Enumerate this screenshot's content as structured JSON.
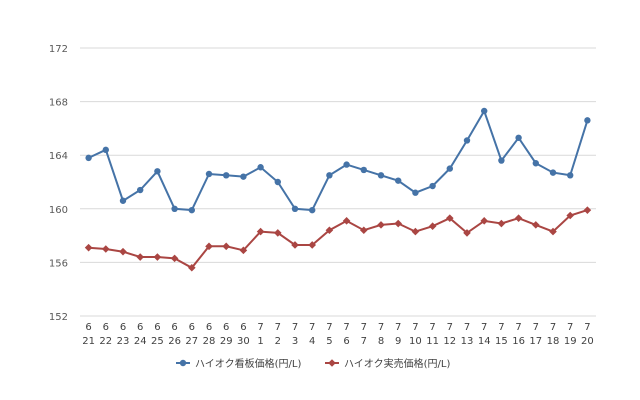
{
  "chart_data": {
    "type": "line",
    "title": "",
    "xlabel": "",
    "ylabel": "",
    "ylim": [
      152,
      172
    ],
    "yticks": [
      "152",
      "156",
      "160",
      "164",
      "168",
      "172"
    ],
    "grid": "horizontal",
    "legend": "bottom",
    "categories": [
      [
        "6",
        "21"
      ],
      [
        "6",
        "22"
      ],
      [
        "6",
        "23"
      ],
      [
        "6",
        "24"
      ],
      [
        "6",
        "25"
      ],
      [
        "6",
        "26"
      ],
      [
        "6",
        "27"
      ],
      [
        "6",
        "28"
      ],
      [
        "6",
        "29"
      ],
      [
        "6",
        "30"
      ],
      [
        "7",
        "1"
      ],
      [
        "7",
        "2"
      ],
      [
        "7",
        "3"
      ],
      [
        "7",
        "4"
      ],
      [
        "7",
        "5"
      ],
      [
        "7",
        "6"
      ],
      [
        "7",
        "7"
      ],
      [
        "7",
        "8"
      ],
      [
        "7",
        "9"
      ],
      [
        "7",
        "10"
      ],
      [
        "7",
        "11"
      ],
      [
        "7",
        "12"
      ],
      [
        "7",
        "13"
      ],
      [
        "7",
        "14"
      ],
      [
        "7",
        "15"
      ],
      [
        "7",
        "16"
      ],
      [
        "7",
        "17"
      ],
      [
        "7",
        "18"
      ],
      [
        "7",
        "19"
      ],
      [
        "7",
        "20"
      ]
    ],
    "series": [
      {
        "name": "ハイオク看板価格(円/L)",
        "color": "#4573a7",
        "marker": "circle",
        "values": [
          163.8,
          164.4,
          160.6,
          161.4,
          162.8,
          160.0,
          159.9,
          162.6,
          162.5,
          162.4,
          163.1,
          162.0,
          160.0,
          159.9,
          162.5,
          163.3,
          162.9,
          162.5,
          162.1,
          161.2,
          161.7,
          163.0,
          165.1,
          167.3,
          163.6,
          165.3,
          163.4,
          162.7,
          162.5,
          166.6
        ]
      },
      {
        "name": "ハイオク実売価格(円/L)",
        "color": "#aa4643",
        "marker": "diamond",
        "values": [
          157.1,
          157.0,
          156.8,
          156.4,
          156.4,
          156.3,
          155.6,
          157.2,
          157.2,
          156.9,
          158.3,
          158.2,
          157.3,
          157.3,
          158.4,
          159.1,
          158.4,
          158.8,
          158.9,
          158.3,
          158.7,
          159.3,
          158.2,
          159.1,
          158.9,
          159.3,
          158.8,
          158.3,
          159.5,
          159.9
        ]
      }
    ]
  }
}
